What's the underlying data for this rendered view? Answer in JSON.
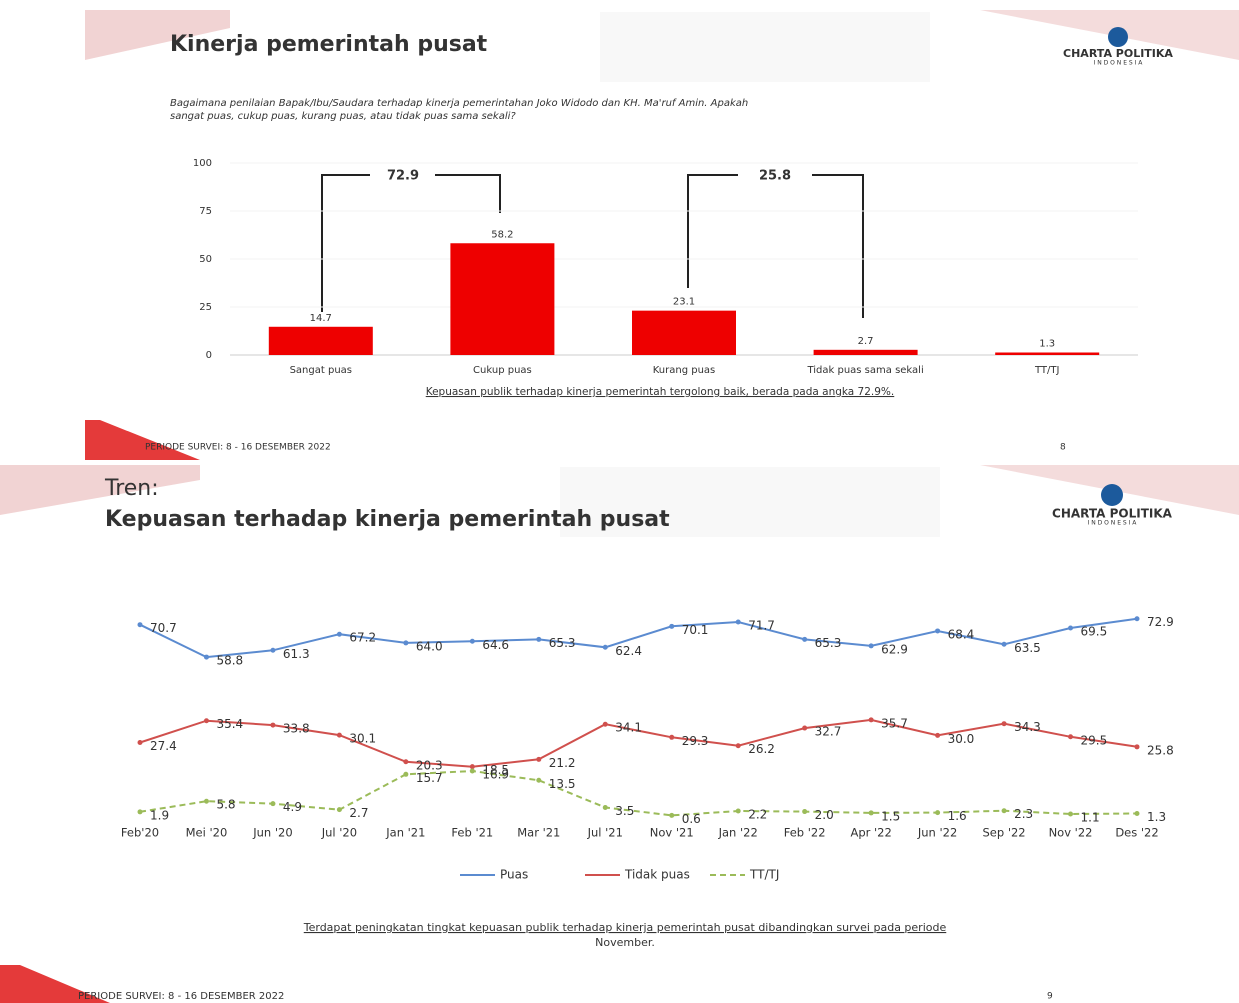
{
  "logo": {
    "name": "CHARTA POLITIKA",
    "country": "I N D O N E S I A"
  },
  "slides": [
    {
      "title": "Kinerja pemerintah pusat",
      "question": [
        "Bagaimana penilaian Bapak/Ibu/Saudara terhadap kinerja pemerintahan Joko Widodo dan KH. Ma'ruf Amin. Apakah",
        "sangat puas, cukup puas, kurang puas, atau tidak puas sama sekali?"
      ],
      "caption": "Kepuasan publik terhadap kinerja pemerintah tergolong baik, berada pada angka 72.9%.",
      "footer": "PERIODE SURVEI: 8 - 16 DESEMBER 2022",
      "page": "8"
    },
    {
      "title": [
        "Tren:",
        "Kepuasan terhadap kinerja pemerintah pusat"
      ],
      "caption": [
        "Terdapat peningkatan tingkat kepuasan publik terhadap kinerja pemerintah pusat dibandingkan survei pada periode",
        "November."
      ],
      "footer": "PERIODE SURVEI: 8 - 16 DESEMBER 2022",
      "page": "9"
    }
  ],
  "chart_data": [
    {
      "type": "bar",
      "categories": [
        "Sangat puas",
        "Cukup puas",
        "Kurang puas",
        "Tidak puas sama sekali",
        "TT/TJ"
      ],
      "values": [
        14.7,
        58.2,
        23.1,
        2.7,
        1.3
      ],
      "color": "#ee0000",
      "ylim": [
        0,
        100
      ],
      "yticks": [
        0,
        25,
        50,
        75,
        100
      ],
      "annotations": [
        72.9,
        25.8
      ]
    },
    {
      "type": "line",
      "categories": [
        "Feb'20",
        "Mei '20",
        "Jun '20",
        "Jul '20",
        "Jan '21",
        "Feb '21",
        "Mar '21",
        "Jul '21",
        "Nov '21",
        "Jan '22",
        "Feb '22",
        "Apr '22",
        "Jun '22",
        "Sep '22",
        "Nov '22",
        "Des '22"
      ],
      "ylim": [
        0,
        100
      ],
      "series": [
        {
          "name": "Puas",
          "color": "#5b8bd0",
          "values": [
            70.7,
            58.8,
            61.3,
            67.2,
            64.0,
            64.6,
            65.3,
            62.4,
            70.1,
            71.7,
            65.3,
            62.9,
            68.4,
            63.5,
            69.5,
            72.9
          ],
          "value_labels": [
            "70.7",
            "58.8",
            "61.3",
            "67.2",
            "64.0",
            "64.6",
            "65.3",
            "62.4",
            "70.1",
            "71.7",
            "65.3",
            "62.9",
            "68.4",
            "63.5",
            "69.5",
            "72.9"
          ]
        },
        {
          "name": "Tidak puas",
          "color": "#d0504d",
          "values": [
            27.4,
            35.4,
            33.8,
            30.1,
            20.3,
            18.5,
            21.2,
            34.1,
            29.3,
            26.2,
            32.7,
            35.7,
            30.0,
            34.3,
            29.5,
            25.8
          ],
          "value_labels": [
            "27.4",
            "35.4",
            "33.8",
            "30.1",
            "20.3",
            "18.5",
            "21.2",
            "34.1",
            "29.3",
            "26.2",
            "32.7",
            "35.7",
            "30.0",
            "34.3",
            "29.5",
            "25.8"
          ]
        },
        {
          "name": "TT/TJ",
          "color": "#9bbb59",
          "dashed": true,
          "values": [
            1.9,
            5.8,
            4.9,
            2.7,
            15.7,
            16.9,
            13.5,
            3.5,
            0.6,
            2.2,
            2.0,
            1.5,
            1.6,
            2.3,
            1.1,
            1.3
          ],
          "value_labels": [
            "1.9",
            "5.8",
            "4.9",
            "2.7",
            "15.7",
            "16.9",
            "13.5",
            "3.5",
            "0.6",
            "2.2",
            "2.0",
            "1.5",
            "1.6",
            "2.3",
            "1.1",
            "1.3"
          ]
        }
      ]
    }
  ]
}
